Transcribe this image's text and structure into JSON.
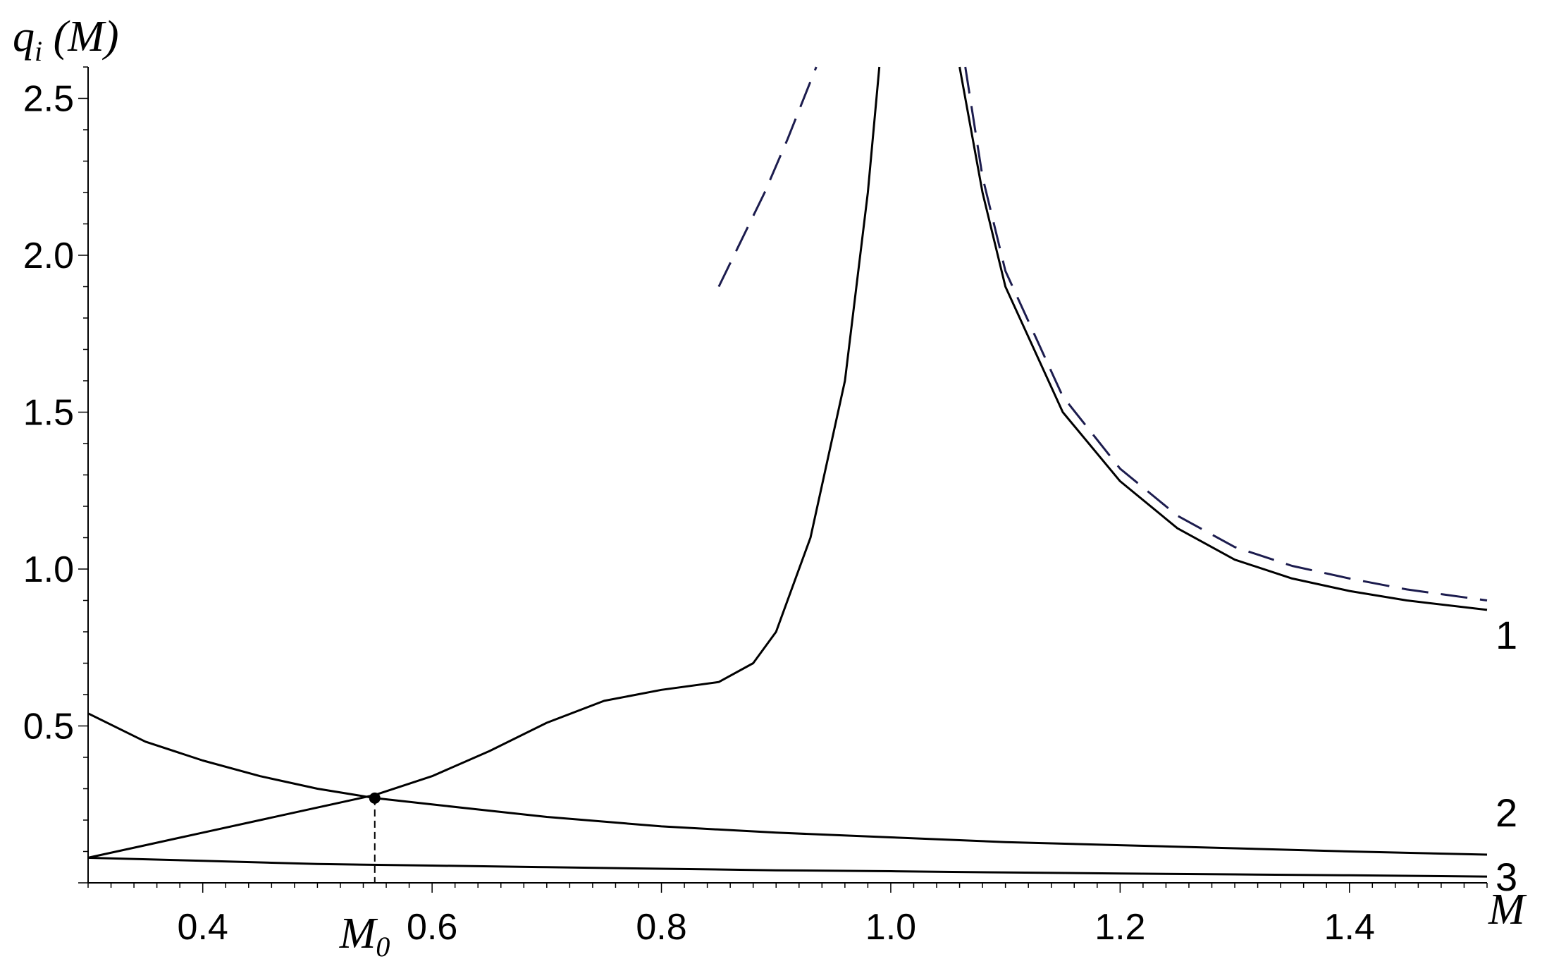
{
  "chart_data": {
    "type": "line",
    "xlabel": "M",
    "ylabel": {
      "main": "q",
      "sub": "i",
      "arg": " (M)"
    },
    "xlim": [
      0.3,
      1.52
    ],
    "ylim": [
      0,
      2.6
    ],
    "x_ticks": [
      0.4,
      0.6,
      0.8,
      1.0,
      1.2,
      1.4
    ],
    "x_tick_labels": [
      "0.4",
      "0.6",
      "0.8",
      "1.0",
      "1.2",
      "1.4"
    ],
    "y_ticks": [
      0.5,
      1.0,
      1.5,
      2.0,
      2.5
    ],
    "y_tick_labels": [
      "0.5",
      "1.0",
      "1.5",
      "2.0",
      "2.5"
    ],
    "marker_label": {
      "main": "M",
      "sub": "0"
    },
    "marker_point": {
      "x": 0.55,
      "y": 0.27
    },
    "colors": {
      "curve": "#000000",
      "dashed": "#1c1c4e"
    },
    "series": [
      {
        "label": "1",
        "style": "solid",
        "segments": [
          [
            [
              0.3,
              0.08
            ],
            [
              0.35,
              0.12
            ],
            [
              0.4,
              0.16
            ],
            [
              0.45,
              0.2
            ],
            [
              0.5,
              0.24
            ],
            [
              0.55,
              0.28
            ],
            [
              0.6,
              0.34
            ],
            [
              0.65,
              0.42
            ],
            [
              0.7,
              0.51
            ],
            [
              0.75,
              0.58
            ],
            [
              0.8,
              0.615
            ],
            [
              0.85,
              0.64
            ],
            [
              0.88,
              0.7
            ],
            [
              0.9,
              0.8
            ],
            [
              0.93,
              1.1
            ],
            [
              0.96,
              1.6
            ],
            [
              0.98,
              2.2
            ],
            [
              0.99,
              2.6
            ]
          ],
          [
            [
              1.06,
              2.6
            ],
            [
              1.08,
              2.2
            ],
            [
              1.1,
              1.9
            ],
            [
              1.15,
              1.5
            ],
            [
              1.2,
              1.28
            ],
            [
              1.25,
              1.13
            ],
            [
              1.3,
              1.03
            ],
            [
              1.35,
              0.97
            ],
            [
              1.4,
              0.93
            ],
            [
              1.45,
              0.9
            ],
            [
              1.52,
              0.87
            ]
          ]
        ]
      },
      {
        "label": "2",
        "style": "solid",
        "segments": [
          [
            [
              0.3,
              0.54
            ],
            [
              0.35,
              0.45
            ],
            [
              0.4,
              0.39
            ],
            [
              0.45,
              0.34
            ],
            [
              0.5,
              0.3
            ],
            [
              0.55,
              0.27
            ],
            [
              0.6,
              0.25
            ],
            [
              0.7,
              0.21
            ],
            [
              0.8,
              0.18
            ],
            [
              0.9,
              0.16
            ],
            [
              1.0,
              0.145
            ],
            [
              1.1,
              0.13
            ],
            [
              1.2,
              0.12
            ],
            [
              1.3,
              0.11
            ],
            [
              1.4,
              0.1
            ],
            [
              1.52,
              0.09
            ]
          ]
        ]
      },
      {
        "label": "3",
        "style": "solid",
        "segments": [
          [
            [
              0.3,
              0.08
            ],
            [
              0.4,
              0.07
            ],
            [
              0.5,
              0.06
            ],
            [
              0.6,
              0.055
            ],
            [
              0.7,
              0.05
            ],
            [
              0.8,
              0.045
            ],
            [
              0.9,
              0.04
            ],
            [
              1.0,
              0.037
            ],
            [
              1.1,
              0.033
            ],
            [
              1.2,
              0.03
            ],
            [
              1.3,
              0.027
            ],
            [
              1.4,
              0.024
            ],
            [
              1.52,
              0.02
            ]
          ]
        ]
      },
      {
        "label": "",
        "style": "dashed",
        "segments": [
          [
            [
              0.85,
              1.9
            ],
            [
              0.87,
              2.05
            ],
            [
              0.89,
              2.2
            ],
            [
              0.91,
              2.37
            ],
            [
              0.935,
              2.6
            ]
          ],
          [
            [
              1.065,
              2.6
            ],
            [
              1.08,
              2.25
            ],
            [
              1.1,
              1.95
            ],
            [
              1.15,
              1.55
            ],
            [
              1.2,
              1.32
            ],
            [
              1.25,
              1.17
            ],
            [
              1.3,
              1.07
            ],
            [
              1.35,
              1.01
            ],
            [
              1.4,
              0.97
            ],
            [
              1.45,
              0.935
            ],
            [
              1.52,
              0.9
            ]
          ]
        ]
      }
    ]
  }
}
